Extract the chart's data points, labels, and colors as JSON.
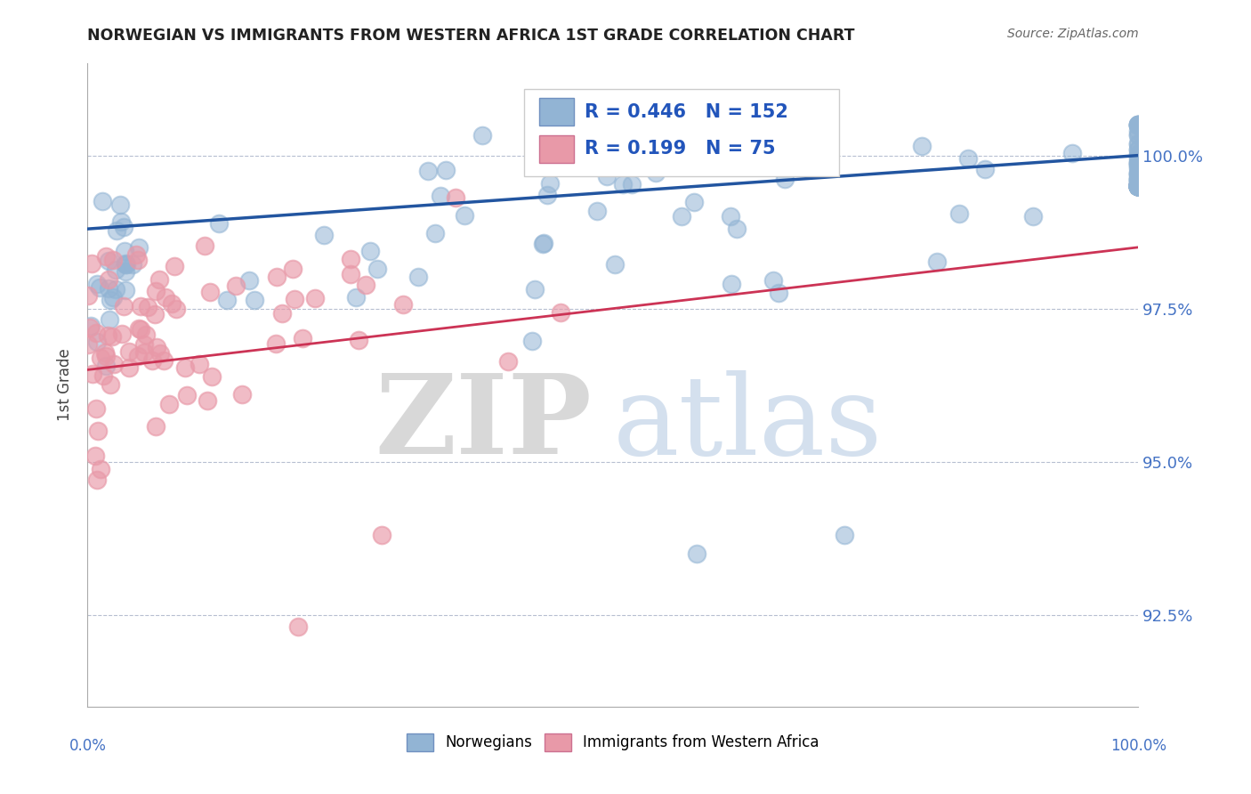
{
  "title": "NORWEGIAN VS IMMIGRANTS FROM WESTERN AFRICA 1ST GRADE CORRELATION CHART",
  "source": "Source: ZipAtlas.com",
  "ylabel": "1st Grade",
  "xlim": [
    0.0,
    100.0
  ],
  "ylim": [
    91.0,
    101.5
  ],
  "yticks": [
    92.5,
    95.0,
    97.5,
    100.0
  ],
  "blue_R": 0.446,
  "blue_N": 152,
  "pink_R": 0.199,
  "pink_N": 75,
  "blue_color": "#92b4d4",
  "pink_color": "#e899a8",
  "blue_trend_color": "#2255a0",
  "pink_trend_color": "#cc3355",
  "background_color": "#ffffff",
  "legend_label_blue": "Norwegians",
  "legend_label_pink": "Immigrants from Western Africa"
}
